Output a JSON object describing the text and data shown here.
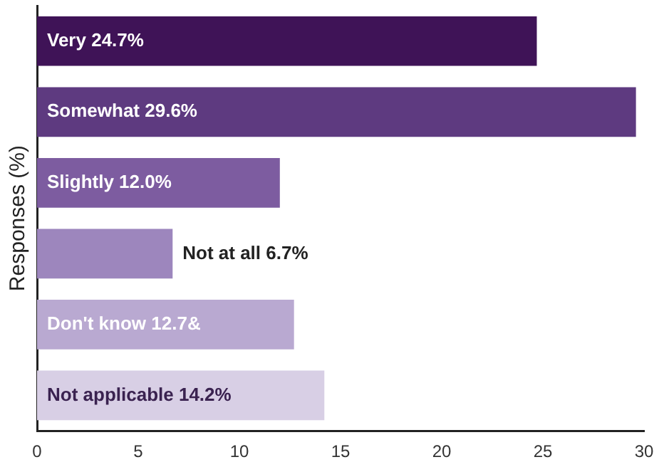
{
  "chart_data": {
    "type": "bar",
    "orientation": "horizontal",
    "ylabel": "Responses (%)",
    "categories": [
      "Very",
      "Somewhat",
      "Slightly",
      "Not at all",
      "Don't know",
      "Not applicable"
    ],
    "values": [
      24.7,
      29.6,
      12.0,
      6.7,
      12.7,
      14.2
    ],
    "value_labels": [
      "24.7%",
      "29.6%",
      "12.0%",
      "6.7%",
      "12.7&",
      "14.2%"
    ],
    "colors": [
      "#3f1357",
      "#5e3a80",
      "#7d5ca0",
      "#9d86bd",
      "#b9a9d1",
      "#d8cfe5"
    ],
    "xlim": [
      0,
      30
    ],
    "xticks": [
      0,
      5,
      10,
      15,
      20,
      25,
      30
    ],
    "grid": false,
    "legend": false,
    "tick_labels": "x"
  }
}
